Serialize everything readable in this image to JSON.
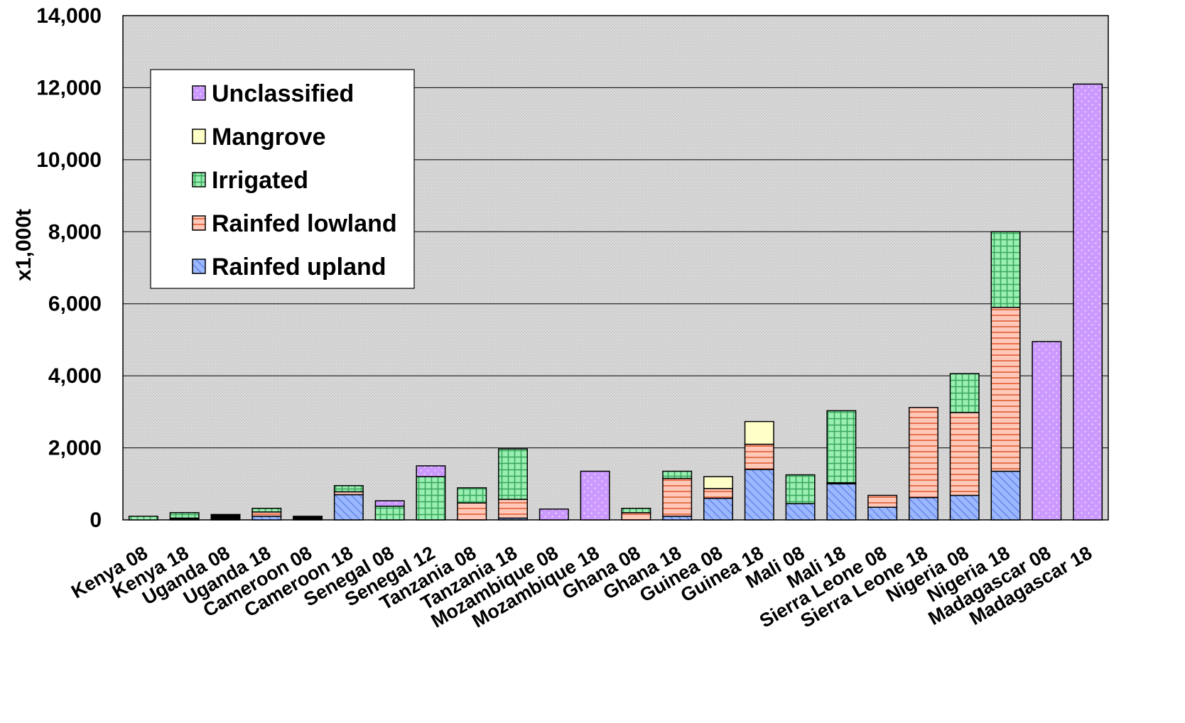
{
  "chart_data": {
    "type": "bar",
    "stacked": true,
    "title": "",
    "xlabel": "",
    "ylabel": "x1,000t",
    "ylim": [
      0,
      14000
    ],
    "yticks": [
      0,
      2000,
      4000,
      6000,
      8000,
      10000,
      12000,
      14000
    ],
    "ytick_labels": [
      "0",
      "2,000",
      "4,000",
      "6,000",
      "8,000",
      "10,000",
      "12,000",
      "14,000"
    ],
    "grid": "horizontal",
    "legend_position": "top-left",
    "categories": [
      "Kenya 08",
      "Kenya 18",
      "Uganda 08",
      "Uganda 18",
      "Cameroon 08",
      "Cameroon 18",
      "Senegal 08",
      "Senegal 12",
      "Tanzania 08",
      "Tanzania 18",
      "Mozambique 08",
      "Mozambique 18",
      "Ghana 08",
      "Ghana 18",
      "Guinea 08",
      "Guinea 18",
      "Mali 08",
      "Mali 18",
      "Sierra Leone 08",
      "Sierra Leone 18",
      "Nigeria 08",
      "Nigeria 18",
      "Madagascar 08",
      "Madagascar 18"
    ],
    "series": [
      {
        "name": "Rainfed upland",
        "color": "#9bb7ff",
        "pattern": "diagonal",
        "values": [
          0,
          20,
          0,
          100,
          0,
          700,
          0,
          0,
          0,
          50,
          0,
          0,
          0,
          100,
          600,
          1400,
          450,
          1000,
          350,
          620,
          680,
          1350,
          0,
          0
        ]
      },
      {
        "name": "Rainfed lowland",
        "color": "#ffb0a0",
        "pattern": "horizontal",
        "values": [
          0,
          30,
          0,
          120,
          0,
          80,
          0,
          0,
          470,
          520,
          0,
          0,
          200,
          1050,
          270,
          700,
          0,
          30,
          330,
          2500,
          2300,
          4550,
          0,
          0
        ]
      },
      {
        "name": "Irrigated",
        "color": "#8ee8a8",
        "pattern": "grid",
        "values": [
          100,
          150,
          0,
          100,
          0,
          170,
          380,
          1200,
          420,
          1400,
          0,
          0,
          120,
          200,
          0,
          0,
          800,
          2000,
          0,
          0,
          1080,
          2100,
          0,
          0
        ]
      },
      {
        "name": "Mangrove",
        "color": "#ffffc8",
        "pattern": "solid",
        "values": [
          0,
          0,
          0,
          0,
          0,
          0,
          0,
          0,
          0,
          0,
          0,
          0,
          0,
          0,
          330,
          630,
          0,
          0,
          0,
          0,
          0,
          0,
          0,
          0
        ]
      },
      {
        "name": "Unclassified",
        "color": "#cc99ff",
        "pattern": "dots",
        "values": [
          0,
          0,
          0,
          0,
          0,
          0,
          150,
          300,
          0,
          0,
          300,
          1350,
          0,
          0,
          0,
          0,
          0,
          0,
          0,
          0,
          0,
          0,
          4950,
          12100
        ]
      },
      {
        "name": "",
        "color": "#000000",
        "pattern": "solid",
        "values": [
          0,
          0,
          150,
          0,
          100,
          0,
          0,
          0,
          0,
          0,
          0,
          0,
          0,
          0,
          0,
          0,
          0,
          0,
          0,
          0,
          0,
          0,
          0,
          0
        ]
      }
    ],
    "legend": [
      "Unclassified",
      "Mangrove",
      "Irrigated",
      "Rainfed lowland",
      "Rainfed upland"
    ]
  }
}
